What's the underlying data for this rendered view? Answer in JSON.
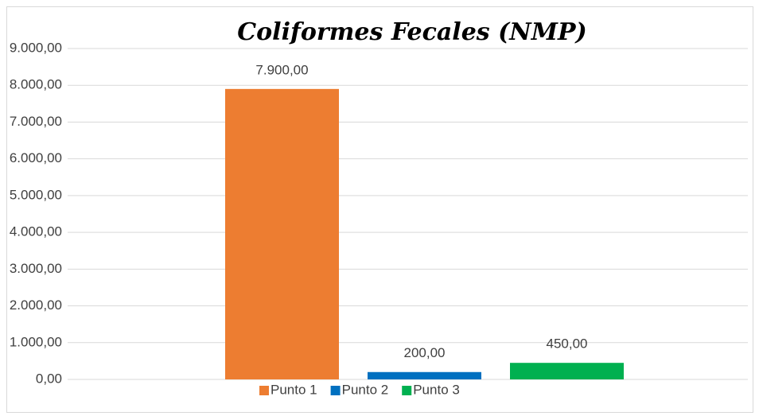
{
  "chart_data": {
    "type": "bar",
    "title": "Coliformes Fecales (NMP)",
    "series": [
      {
        "name": "Punto 1",
        "color": "#ED7D31",
        "values": [
          7900
        ],
        "value_labels": [
          "7.900,00"
        ]
      },
      {
        "name": "Punto 2",
        "color": "#0070C0",
        "values": [
          200
        ],
        "value_labels": [
          "200,00"
        ]
      },
      {
        "name": "Punto 3",
        "color": "#00B050",
        "values": [
          450
        ],
        "value_labels": [
          "450,00"
        ]
      }
    ],
    "ylim": [
      0,
      9000
    ],
    "yticks": [
      {
        "value": 0,
        "label": "0,00"
      },
      {
        "value": 1000,
        "label": "1.000,00"
      },
      {
        "value": 2000,
        "label": "2.000,00"
      },
      {
        "value": 3000,
        "label": "3.000,00"
      },
      {
        "value": 4000,
        "label": "4.000,00"
      },
      {
        "value": 5000,
        "label": "5.000,00"
      },
      {
        "value": 6000,
        "label": "6.000,00"
      },
      {
        "value": 7000,
        "label": "7.000,00"
      },
      {
        "value": 8000,
        "label": "8.000,00"
      },
      {
        "value": 9000,
        "label": "9.000,00"
      }
    ],
    "grid": true,
    "legend": "bottom"
  }
}
